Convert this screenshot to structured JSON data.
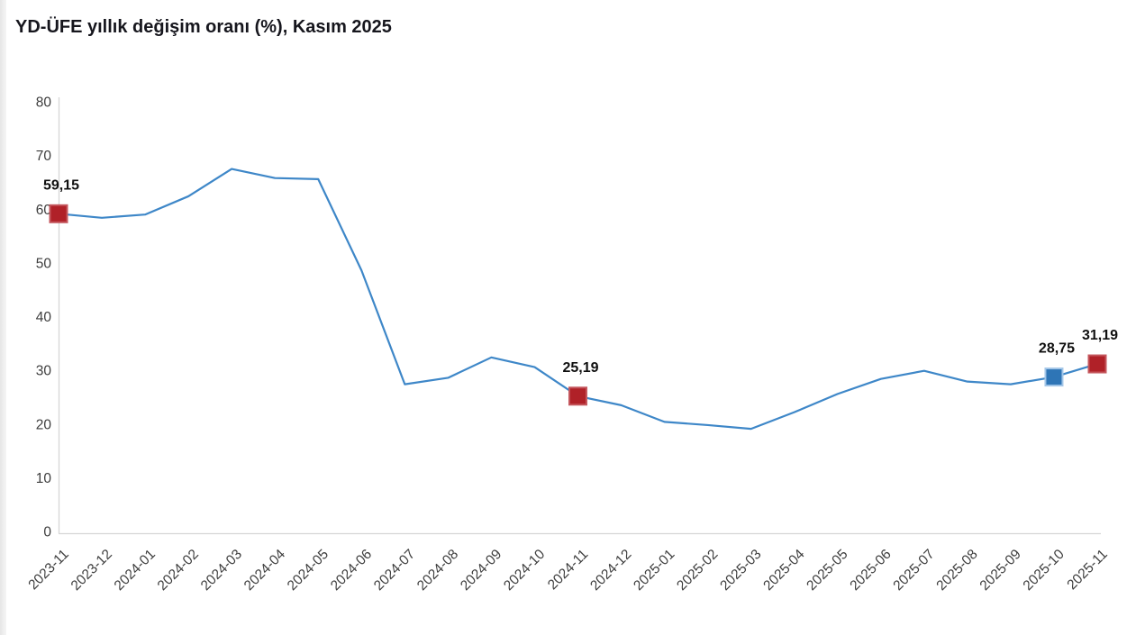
{
  "title": "YD-ÜFE yıllık değişim oranı (%), Kasım 2025",
  "chart_data": {
    "type": "line",
    "title": "YD-ÜFE yıllık değişim oranı (%), Kasım 2025",
    "categories": [
      "2023-11",
      "2023-12",
      "2024-01",
      "2024-02",
      "2024-03",
      "2024-04",
      "2024-05",
      "2024-06",
      "2024-07",
      "2024-08",
      "2024-09",
      "2024-10",
      "2024-11",
      "2024-12",
      "2025-01",
      "2025-02",
      "2025-03",
      "2025-04",
      "2025-05",
      "2025-06",
      "2025-07",
      "2025-08",
      "2025-09",
      "2025-10",
      "2025-11"
    ],
    "values": [
      59.15,
      58.4,
      59.0,
      62.4,
      67.5,
      65.8,
      65.6,
      48.6,
      27.4,
      28.6,
      32.4,
      30.6,
      25.19,
      23.5,
      20.4,
      19.8,
      19.1,
      22.2,
      25.6,
      28.4,
      29.9,
      27.9,
      27.4,
      28.75,
      31.19
    ],
    "ylim": [
      0,
      80
    ],
    "ytick_step": 10,
    "grid": false,
    "legend": "none",
    "xlabel": "",
    "ylabel": "",
    "line_color": "#3e87c8",
    "axis_color": "#d6d6d6",
    "tick_label_color": "#3d3d3d",
    "data_label_color": "#101010",
    "highlighted_points": [
      {
        "category": "2023-11",
        "value": 59.15,
        "label": "59,15",
        "marker_color": "#b02128",
        "marker_border": "#c4565c"
      },
      {
        "category": "2024-11",
        "value": 25.19,
        "label": "25,19",
        "marker_color": "#b02128",
        "marker_border": "#c4565c"
      },
      {
        "category": "2025-10",
        "value": 28.75,
        "label": "28,75",
        "marker_color": "#2e75b6",
        "marker_border": "#a3c6e8"
      },
      {
        "category": "2025-11",
        "value": 31.19,
        "label": "31,19",
        "marker_color": "#b02128",
        "marker_border": "#c4565c"
      }
    ]
  }
}
